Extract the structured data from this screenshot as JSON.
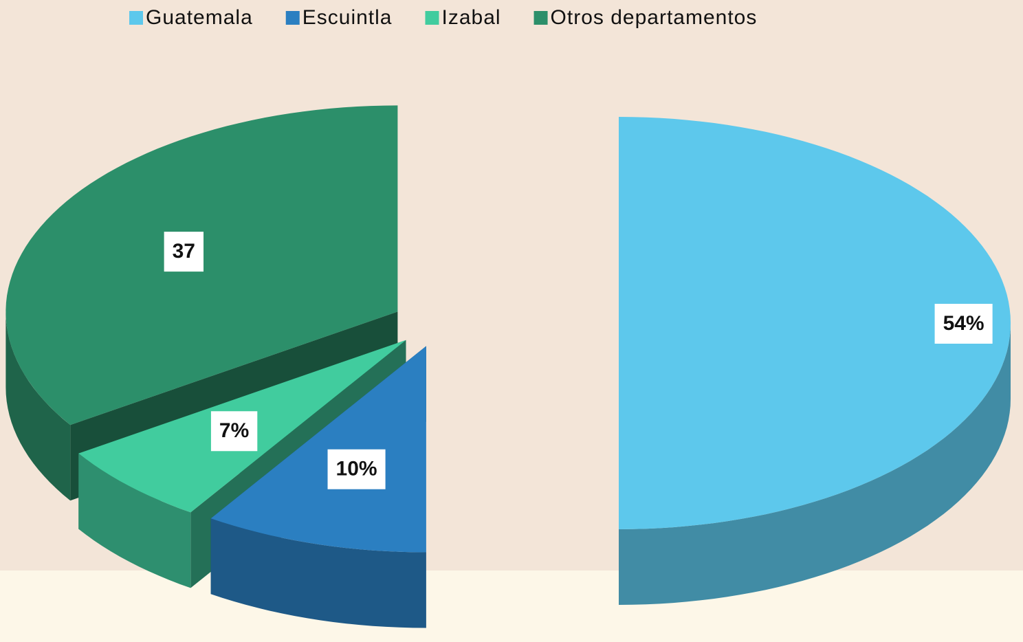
{
  "chart_data": {
    "type": "pie",
    "categories": [
      "Guatemala",
      "Escuintla",
      "Izabal",
      "Otros departamentos"
    ],
    "values": [
      54,
      10,
      7,
      37
    ],
    "value_labels": [
      "54%",
      "10%",
      "7%",
      "37"
    ],
    "colors": [
      "#5dc8ec",
      "#2b7fc1",
      "#41cc9e",
      "#2c8f6a"
    ],
    "legend": "top"
  }
}
